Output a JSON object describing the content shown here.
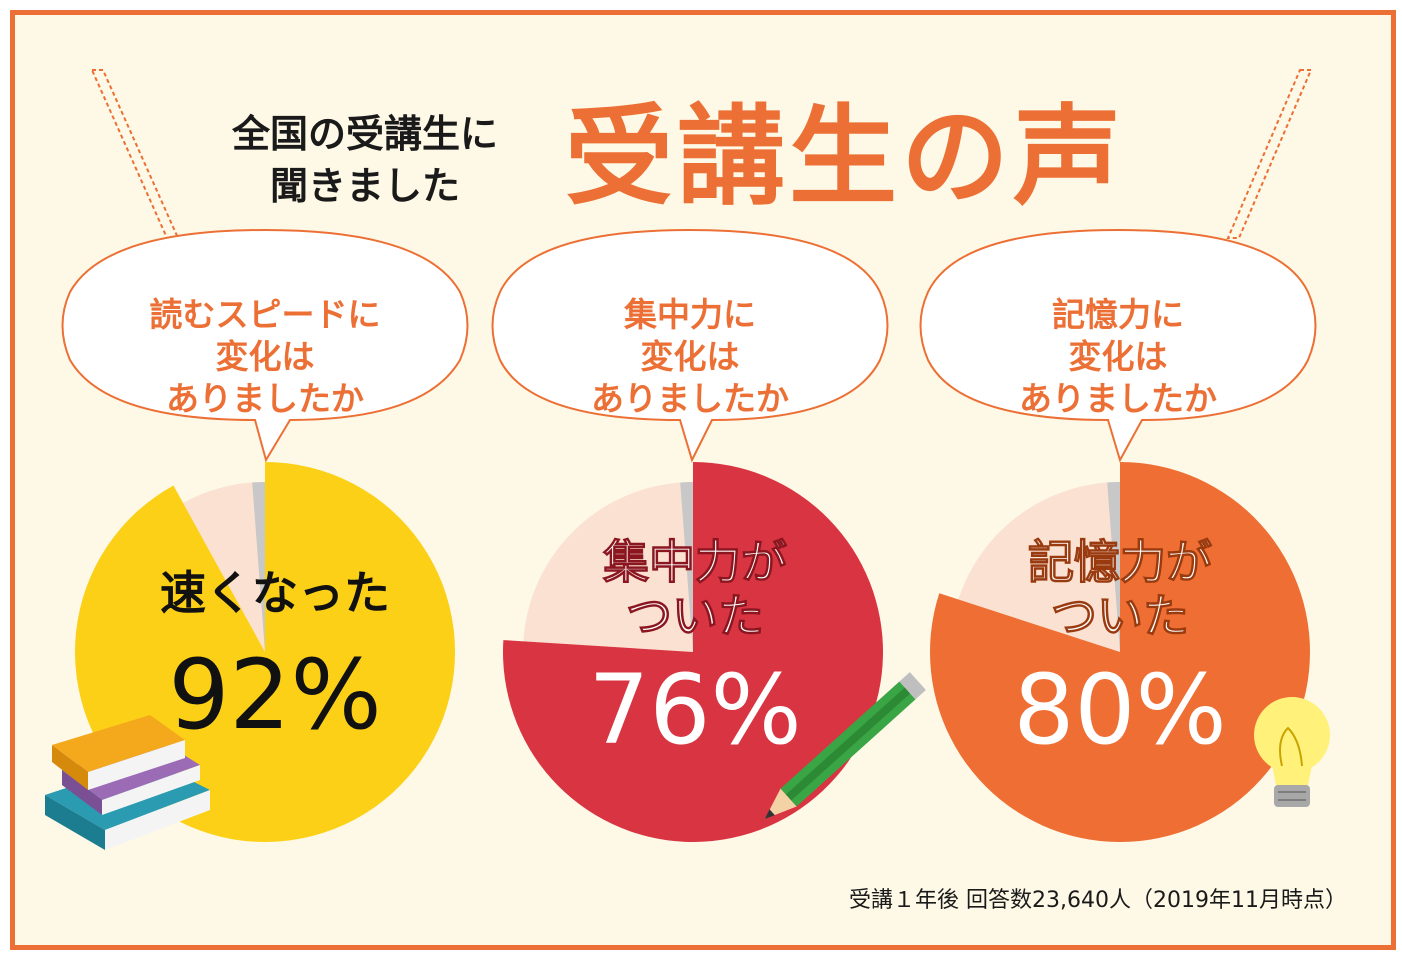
{
  "header": {
    "subtitle_line1": "全国の受講生に",
    "subtitle_line2": "聞きました",
    "title": "受講生の声"
  },
  "footnote": "受講１年後 回答数23,640人（2019年11月時点）",
  "colors": {
    "frame": "#ec7035",
    "background": "#fef8e6",
    "remainder": "#fae1d2",
    "divider": "#c8c8c8"
  },
  "chart_data": [
    {
      "type": "pie",
      "question": [
        "読むスピードに",
        "変化は",
        "ありましたか"
      ],
      "label": [
        "速くなった"
      ],
      "percent_text": "92%",
      "values": [
        92,
        8
      ],
      "color": "#fbd016",
      "text_color": "#111111",
      "icon": "books-icon"
    },
    {
      "type": "pie",
      "question": [
        "集中力に",
        "変化は",
        "ありましたか"
      ],
      "label": [
        "集中力が",
        "ついた"
      ],
      "percent_text": "76%",
      "values": [
        76,
        24
      ],
      "color": "#d93442",
      "text_color": "#ffffff",
      "icon": "pencil-icon"
    },
    {
      "type": "pie",
      "question": [
        "記憶力に",
        "変化は",
        "ありましたか"
      ],
      "label": [
        "記憶力が",
        "ついた"
      ],
      "percent_text": "80%",
      "values": [
        80,
        20
      ],
      "color": "#ee6e33",
      "text_color": "#ffffff",
      "icon": "lightbulb-icon"
    }
  ]
}
